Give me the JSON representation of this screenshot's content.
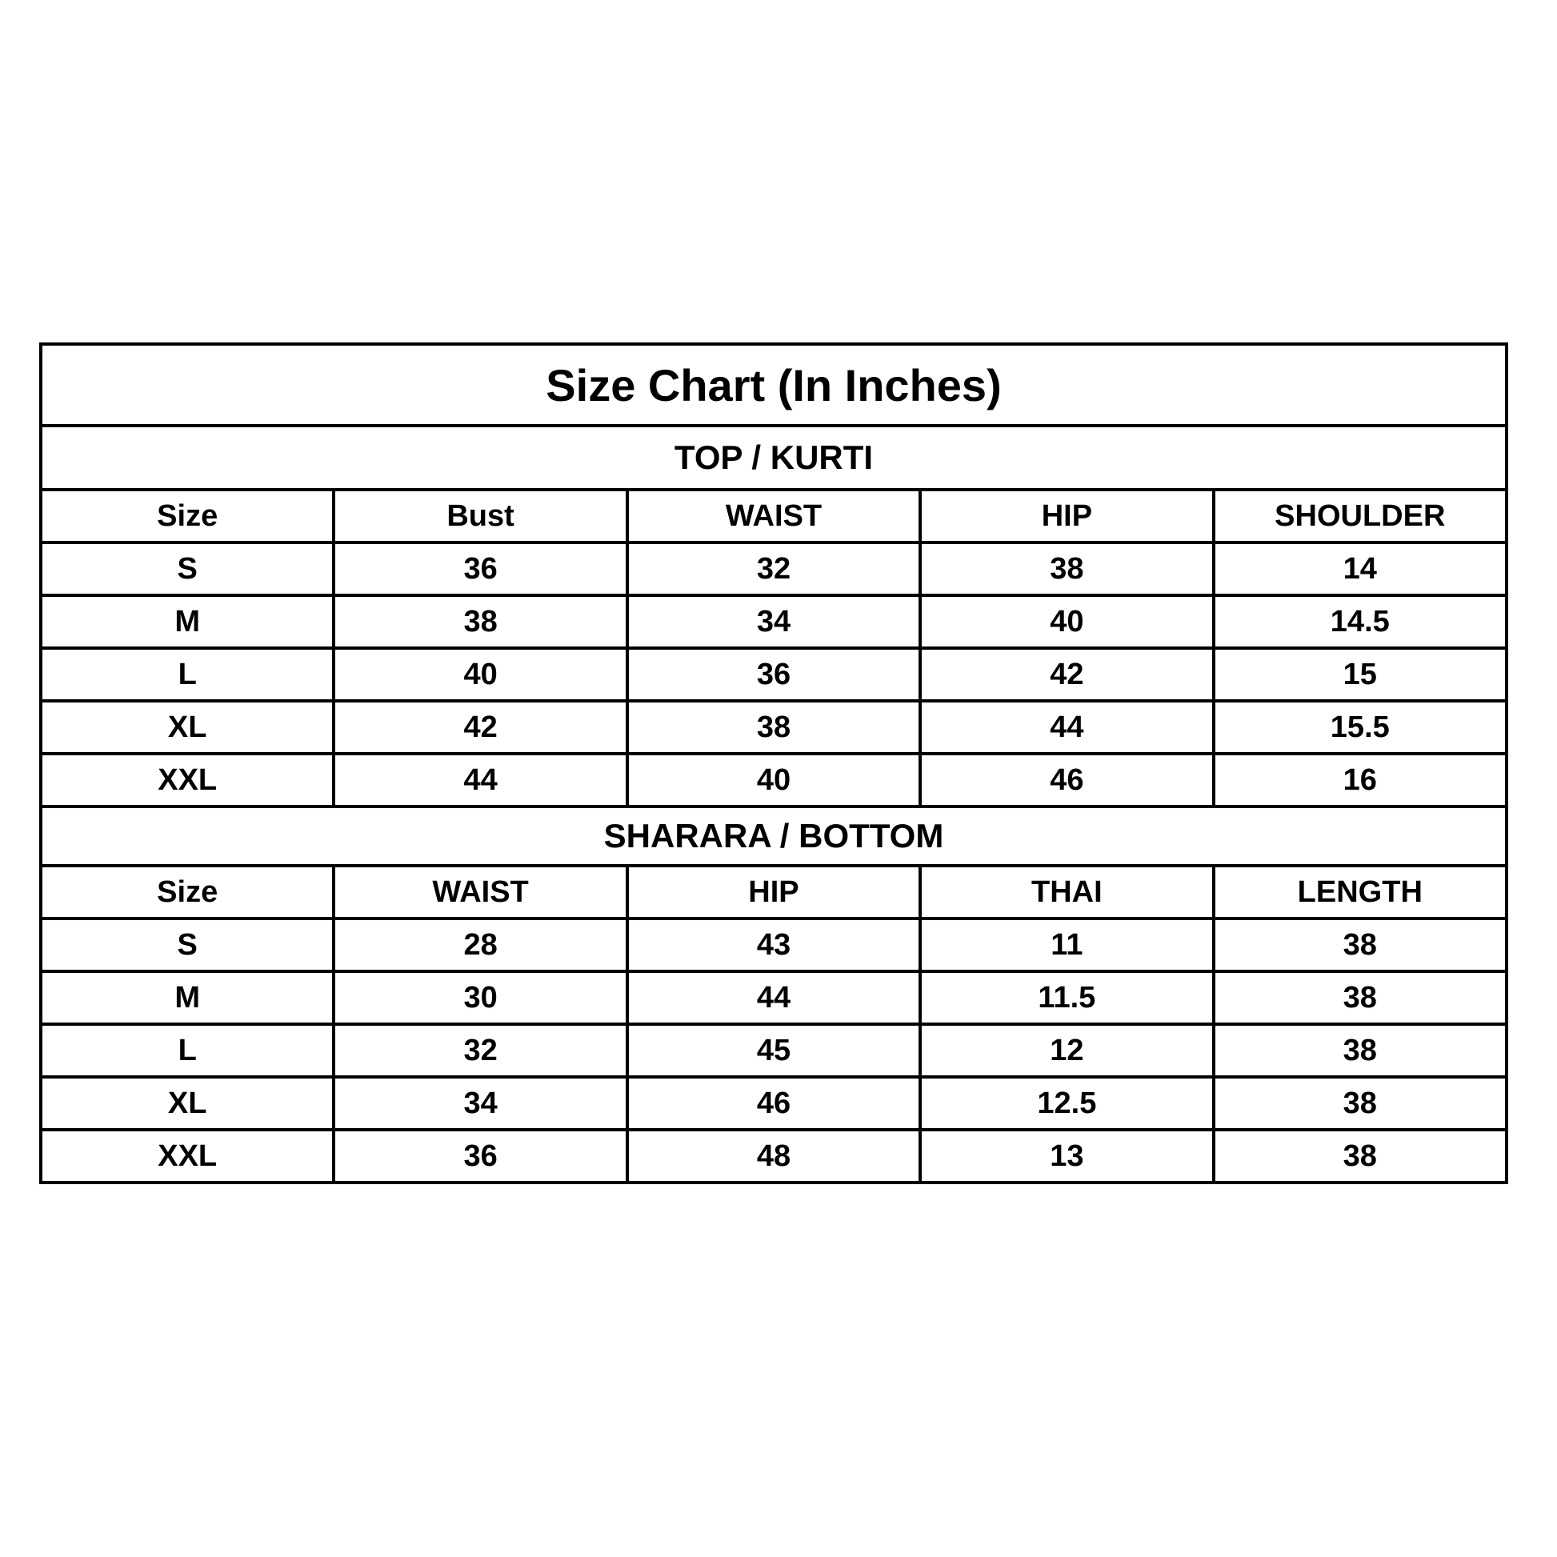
{
  "title": "Size Chart (In Inches)",
  "top": {
    "heading": "TOP / KURTI",
    "columns": [
      "Size",
      "Bust",
      "WAIST",
      "HIP",
      "SHOULDER"
    ],
    "rows": [
      [
        "S",
        "36",
        "32",
        "38",
        "14"
      ],
      [
        "M",
        "38",
        "34",
        "40",
        "14.5"
      ],
      [
        "L",
        "40",
        "36",
        "42",
        "15"
      ],
      [
        "XL",
        "42",
        "38",
        "44",
        "15.5"
      ],
      [
        "XXL",
        "44",
        "40",
        "46",
        "16"
      ]
    ]
  },
  "bottom": {
    "heading": "SHARARA / BOTTOM",
    "columns": [
      "Size",
      "WAIST",
      "HIP",
      "THAI",
      "LENGTH"
    ],
    "rows": [
      [
        "S",
        "28",
        "43",
        "11",
        "38"
      ],
      [
        "M",
        "30",
        "44",
        "11.5",
        "38"
      ],
      [
        "L",
        "32",
        "45",
        "12",
        "38"
      ],
      [
        "XL",
        "34",
        "46",
        "12.5",
        "38"
      ],
      [
        "XXL",
        "36",
        "48",
        "13",
        "38"
      ]
    ]
  }
}
